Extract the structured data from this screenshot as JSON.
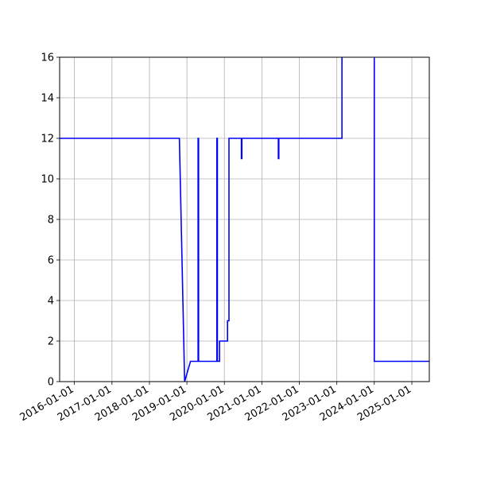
{
  "chart_data": {
    "type": "line",
    "title": "",
    "xlabel": "",
    "ylabel": "",
    "x_axis_type": "date",
    "xlim": [
      "2015-08-10",
      "2025-06-20"
    ],
    "ylim": [
      0,
      16
    ],
    "grid": true,
    "legend": "none",
    "x_ticks": [
      "2016-01-01",
      "2017-01-01",
      "2018-01-01",
      "2019-01-01",
      "2020-01-01",
      "2021-01-01",
      "2022-01-01",
      "2023-01-01",
      "2024-01-01",
      "2025-01-01"
    ],
    "y_ticks": [
      0,
      2,
      4,
      6,
      8,
      10,
      12,
      14,
      16
    ],
    "series": [
      {
        "color": "#0000ff",
        "points": [
          [
            "2015-08-10",
            12
          ],
          [
            "2018-10-20",
            12
          ],
          [
            "2018-12-10",
            0
          ],
          [
            "2019-02-05",
            1
          ],
          [
            "2019-04-20",
            1
          ],
          [
            "2019-04-20",
            12
          ],
          [
            "2019-04-25",
            12
          ],
          [
            "2019-04-25",
            1
          ],
          [
            "2019-10-20",
            1
          ],
          [
            "2019-10-20",
            12
          ],
          [
            "2019-10-25",
            12
          ],
          [
            "2019-10-25",
            1
          ],
          [
            "2019-11-15",
            1
          ],
          [
            "2019-11-15",
            2
          ],
          [
            "2020-02-01",
            2
          ],
          [
            "2020-02-01",
            3
          ],
          [
            "2020-02-15",
            3
          ],
          [
            "2020-02-15",
            12
          ],
          [
            "2020-06-15",
            12
          ],
          [
            "2020-06-15",
            11
          ],
          [
            "2020-06-20",
            11
          ],
          [
            "2020-06-20",
            12
          ],
          [
            "2021-06-10",
            12
          ],
          [
            "2021-06-10",
            11
          ],
          [
            "2021-06-15",
            11
          ],
          [
            "2021-06-15",
            12
          ],
          [
            "2023-02-20",
            12
          ],
          [
            "2023-02-20",
            16.5
          ],
          [
            "2024-01-01",
            16.5
          ],
          [
            "2024-01-01",
            1
          ],
          [
            "2025-06-20",
            1
          ]
        ]
      }
    ]
  }
}
